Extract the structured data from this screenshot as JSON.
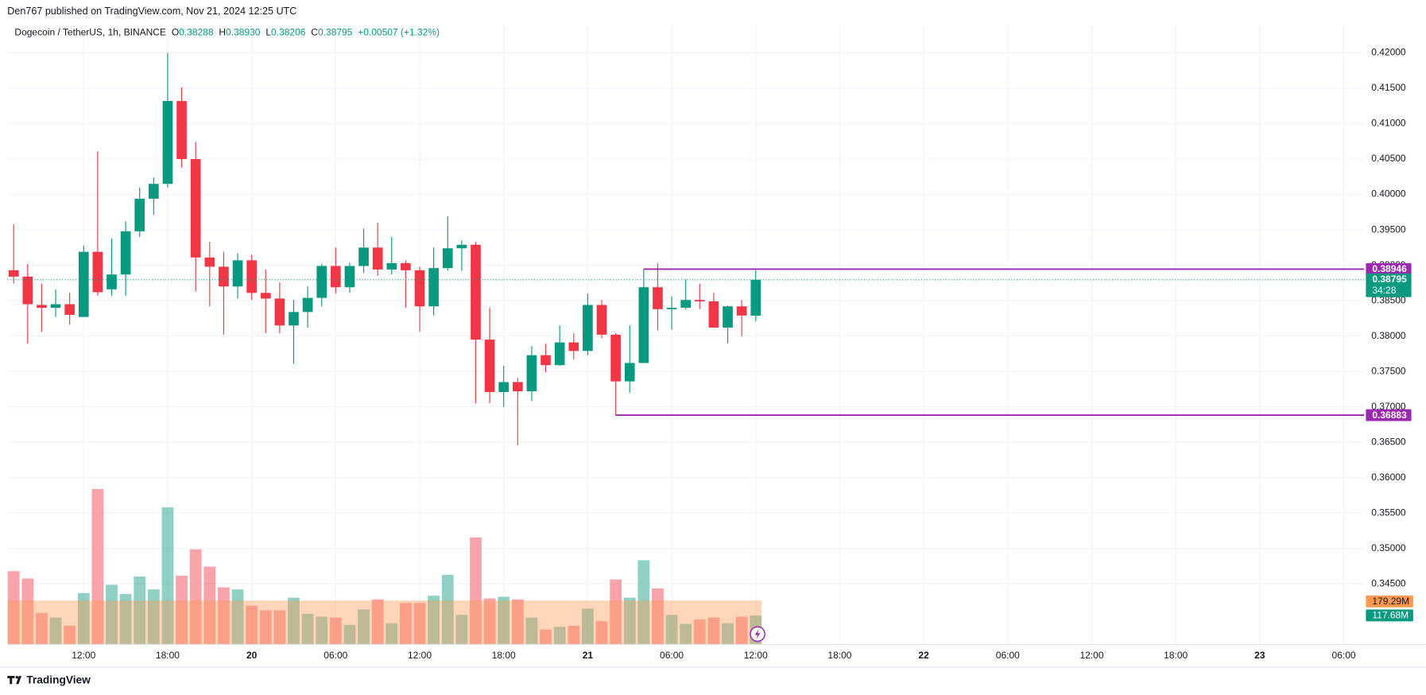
{
  "header": {
    "published": "Den767 published on TradingView.com, Nov 21, 2024 12:25 UTC"
  },
  "footer": {
    "brand": "TradingView"
  },
  "chart_data": {
    "type": "candlestick",
    "symbol": "Dogecoin / TetherUS, 1h, BINANCE",
    "legend": [
      {
        "key": "O",
        "text": "0.38288"
      },
      {
        "key": "H",
        "text": "0.38930"
      },
      {
        "key": "L",
        "text": "0.38206"
      },
      {
        "key": "C",
        "text": "0.38795"
      }
    ],
    "change": "+0.00507 (+1.32%)",
    "colors": {
      "up": "#089981",
      "down": "#f23645"
    },
    "x": [
      0,
      1,
      2,
      3,
      4,
      5,
      6,
      7,
      8,
      9,
      10,
      11,
      12,
      13,
      14,
      15,
      16,
      17,
      18,
      19,
      20,
      21,
      22,
      23,
      24,
      25,
      26,
      27,
      28,
      29,
      30,
      31,
      32,
      33,
      34,
      35,
      36,
      37,
      38,
      39,
      40,
      41,
      42,
      43,
      44,
      45,
      46,
      47,
      48,
      49,
      50,
      51,
      52,
      53
    ],
    "open": [
      0.3893,
      0.3884,
      0.3844,
      0.384,
      0.3845,
      0.3827,
      0.3919,
      0.3866,
      0.3887,
      0.3948,
      0.3994,
      0.4015,
      0.4132,
      0.405,
      0.3911,
      0.3898,
      0.387,
      0.3907,
      0.3861,
      0.3853,
      0.3815,
      0.3834,
      0.3854,
      0.3899,
      0.3869,
      0.3899,
      0.3925,
      0.3894,
      0.3903,
      0.3893,
      0.3842,
      0.3896,
      0.3924,
      0.3929,
      0.3795,
      0.3721,
      0.3735,
      0.3722,
      0.3773,
      0.3759,
      0.3791,
      0.3779,
      0.3844,
      0.3802,
      0.3736,
      0.3762,
      0.3869,
      0.3838,
      0.384,
      0.3851,
      0.3849,
      0.3812,
      0.3842,
      0.38288
    ],
    "high": [
      0.3958,
      0.3902,
      0.3874,
      0.3866,
      0.3861,
      0.3928,
      0.4061,
      0.3938,
      0.3962,
      0.401,
      0.4024,
      0.42,
      0.4151,
      0.4074,
      0.3933,
      0.3919,
      0.3917,
      0.3915,
      0.3894,
      0.3876,
      0.3851,
      0.387,
      0.3902,
      0.3925,
      0.3904,
      0.3952,
      0.396,
      0.394,
      0.3907,
      0.3898,
      0.3925,
      0.3969,
      0.3935,
      0.3933,
      0.384,
      0.3758,
      0.3741,
      0.3786,
      0.3789,
      0.3815,
      0.3804,
      0.386,
      0.3851,
      0.3804,
      0.3815,
      0.38946,
      0.3903,
      0.3856,
      0.388,
      0.3874,
      0.3861,
      0.3843,
      0.3851,
      0.3893
    ],
    "low": [
      0.3874,
      0.3789,
      0.3806,
      0.3827,
      0.3816,
      0.3827,
      0.3857,
      0.3857,
      0.3857,
      0.394,
      0.3971,
      0.401,
      0.4038,
      0.3863,
      0.3842,
      0.3802,
      0.3853,
      0.3851,
      0.3804,
      0.3804,
      0.3761,
      0.3812,
      0.3842,
      0.386,
      0.3861,
      0.3889,
      0.3885,
      0.3887,
      0.384,
      0.3806,
      0.3829,
      0.3892,
      0.3892,
      0.3705,
      0.3705,
      0.37,
      0.3646,
      0.3708,
      0.3749,
      0.3758,
      0.3767,
      0.3773,
      0.3797,
      0.36883,
      0.372,
      0.3762,
      0.3808,
      0.3809,
      0.3838,
      0.3838,
      0.3812,
      0.379,
      0.38,
      0.38206
    ],
    "close": [
      0.3884,
      0.3845,
      0.384,
      0.3845,
      0.383,
      0.3919,
      0.3862,
      0.3887,
      0.3948,
      0.3994,
      0.4015,
      0.4132,
      0.405,
      0.3911,
      0.3898,
      0.387,
      0.3907,
      0.3861,
      0.3853,
      0.3815,
      0.3834,
      0.3854,
      0.3899,
      0.3869,
      0.3899,
      0.3925,
      0.3894,
      0.3903,
      0.3893,
      0.3842,
      0.3896,
      0.3924,
      0.3929,
      0.3795,
      0.3721,
      0.3735,
      0.3722,
      0.3773,
      0.3759,
      0.3791,
      0.3779,
      0.3844,
      0.3802,
      0.3736,
      0.3762,
      0.3869,
      0.3838,
      0.384,
      0.3851,
      0.3849,
      0.3812,
      0.3842,
      0.3829,
      0.38795
    ],
    "volume": [
      300,
      270,
      128,
      109,
      75,
      210,
      638,
      244,
      206,
      278,
      225,
      563,
      281,
      390,
      319,
      233,
      225,
      158,
      139,
      139,
      191,
      124,
      113,
      109,
      79,
      143,
      184,
      86,
      169,
      169,
      199,
      285,
      120,
      439,
      188,
      195,
      184,
      109,
      60,
      71,
      75,
      146,
      94,
      266,
      191,
      345,
      229,
      120,
      83,
      101,
      109,
      86,
      113,
      117.68
    ],
    "volume_labels": [
      null,
      null,
      null,
      null,
      null,
      null,
      null,
      null,
      null,
      null,
      null,
      null,
      null,
      null,
      null,
      null,
      null,
      null,
      null,
      null,
      null,
      null,
      null,
      null,
      null,
      null,
      null,
      null,
      null,
      null,
      null,
      null,
      null,
      null,
      null,
      null,
      null,
      null,
      null,
      null,
      null,
      null,
      null,
      null,
      null,
      null,
      null,
      null,
      null,
      null,
      null,
      null,
      null,
      "117.68M"
    ],
    "volume_ma": {
      "value": 179.29,
      "label": "179.29M",
      "color": "#ff9850"
    },
    "volume_ylim": [
      0,
      2550
    ],
    "price_lines": [
      {
        "value": 0.38946,
        "x": 45,
        "color": "#9c27b0"
      },
      {
        "value": 0.36883,
        "x": 43,
        "color": "#9c27b0"
      }
    ],
    "countdown": "34:28",
    "xlim": [
      -0.45,
      96.45
    ],
    "xticks": [
      {
        "value": 5,
        "label": "12:00"
      },
      {
        "value": 11,
        "label": "18:00"
      },
      {
        "value": 17,
        "label": "20"
      },
      {
        "value": 23,
        "label": "06:00"
      },
      {
        "value": 29,
        "label": "12:00"
      },
      {
        "value": 35,
        "label": "18:00"
      },
      {
        "value": 41,
        "label": "21"
      },
      {
        "value": 47,
        "label": "06:00"
      },
      {
        "value": 53,
        "label": "12:00"
      },
      {
        "value": 59,
        "label": "18:00"
      },
      {
        "value": 65,
        "label": "22"
      },
      {
        "value": 71,
        "label": "06:00"
      },
      {
        "value": 77,
        "label": "12:00"
      },
      {
        "value": 83,
        "label": "18:00"
      },
      {
        "value": 89,
        "label": "23"
      },
      {
        "value": 95,
        "label": "06:00"
      }
    ],
    "ylim": [
      0.3365,
      0.424
    ],
    "yticks": [
      {
        "value": 0.345,
        "label": "0.34500"
      },
      {
        "value": 0.35,
        "label": "0.35000"
      },
      {
        "value": 0.355,
        "label": "0.35500"
      },
      {
        "value": 0.36,
        "label": "0.36000"
      },
      {
        "value": 0.365,
        "label": "0.36500"
      },
      {
        "value": 0.37,
        "label": "0.37000"
      },
      {
        "value": 0.375,
        "label": "0.37500"
      },
      {
        "value": 0.38,
        "label": "0.38000"
      },
      {
        "value": 0.385,
        "label": "0.38500"
      },
      {
        "value": 0.39,
        "label": "0.39000"
      },
      {
        "value": 0.395,
        "label": "0.39500"
      },
      {
        "value": 0.4,
        "label": "0.40000"
      },
      {
        "value": 0.405,
        "label": "0.40500"
      },
      {
        "value": 0.41,
        "label": "0.41000"
      },
      {
        "value": 0.415,
        "label": "0.41500"
      },
      {
        "value": 0.42,
        "label": "0.42000"
      }
    ],
    "grid": true
  }
}
